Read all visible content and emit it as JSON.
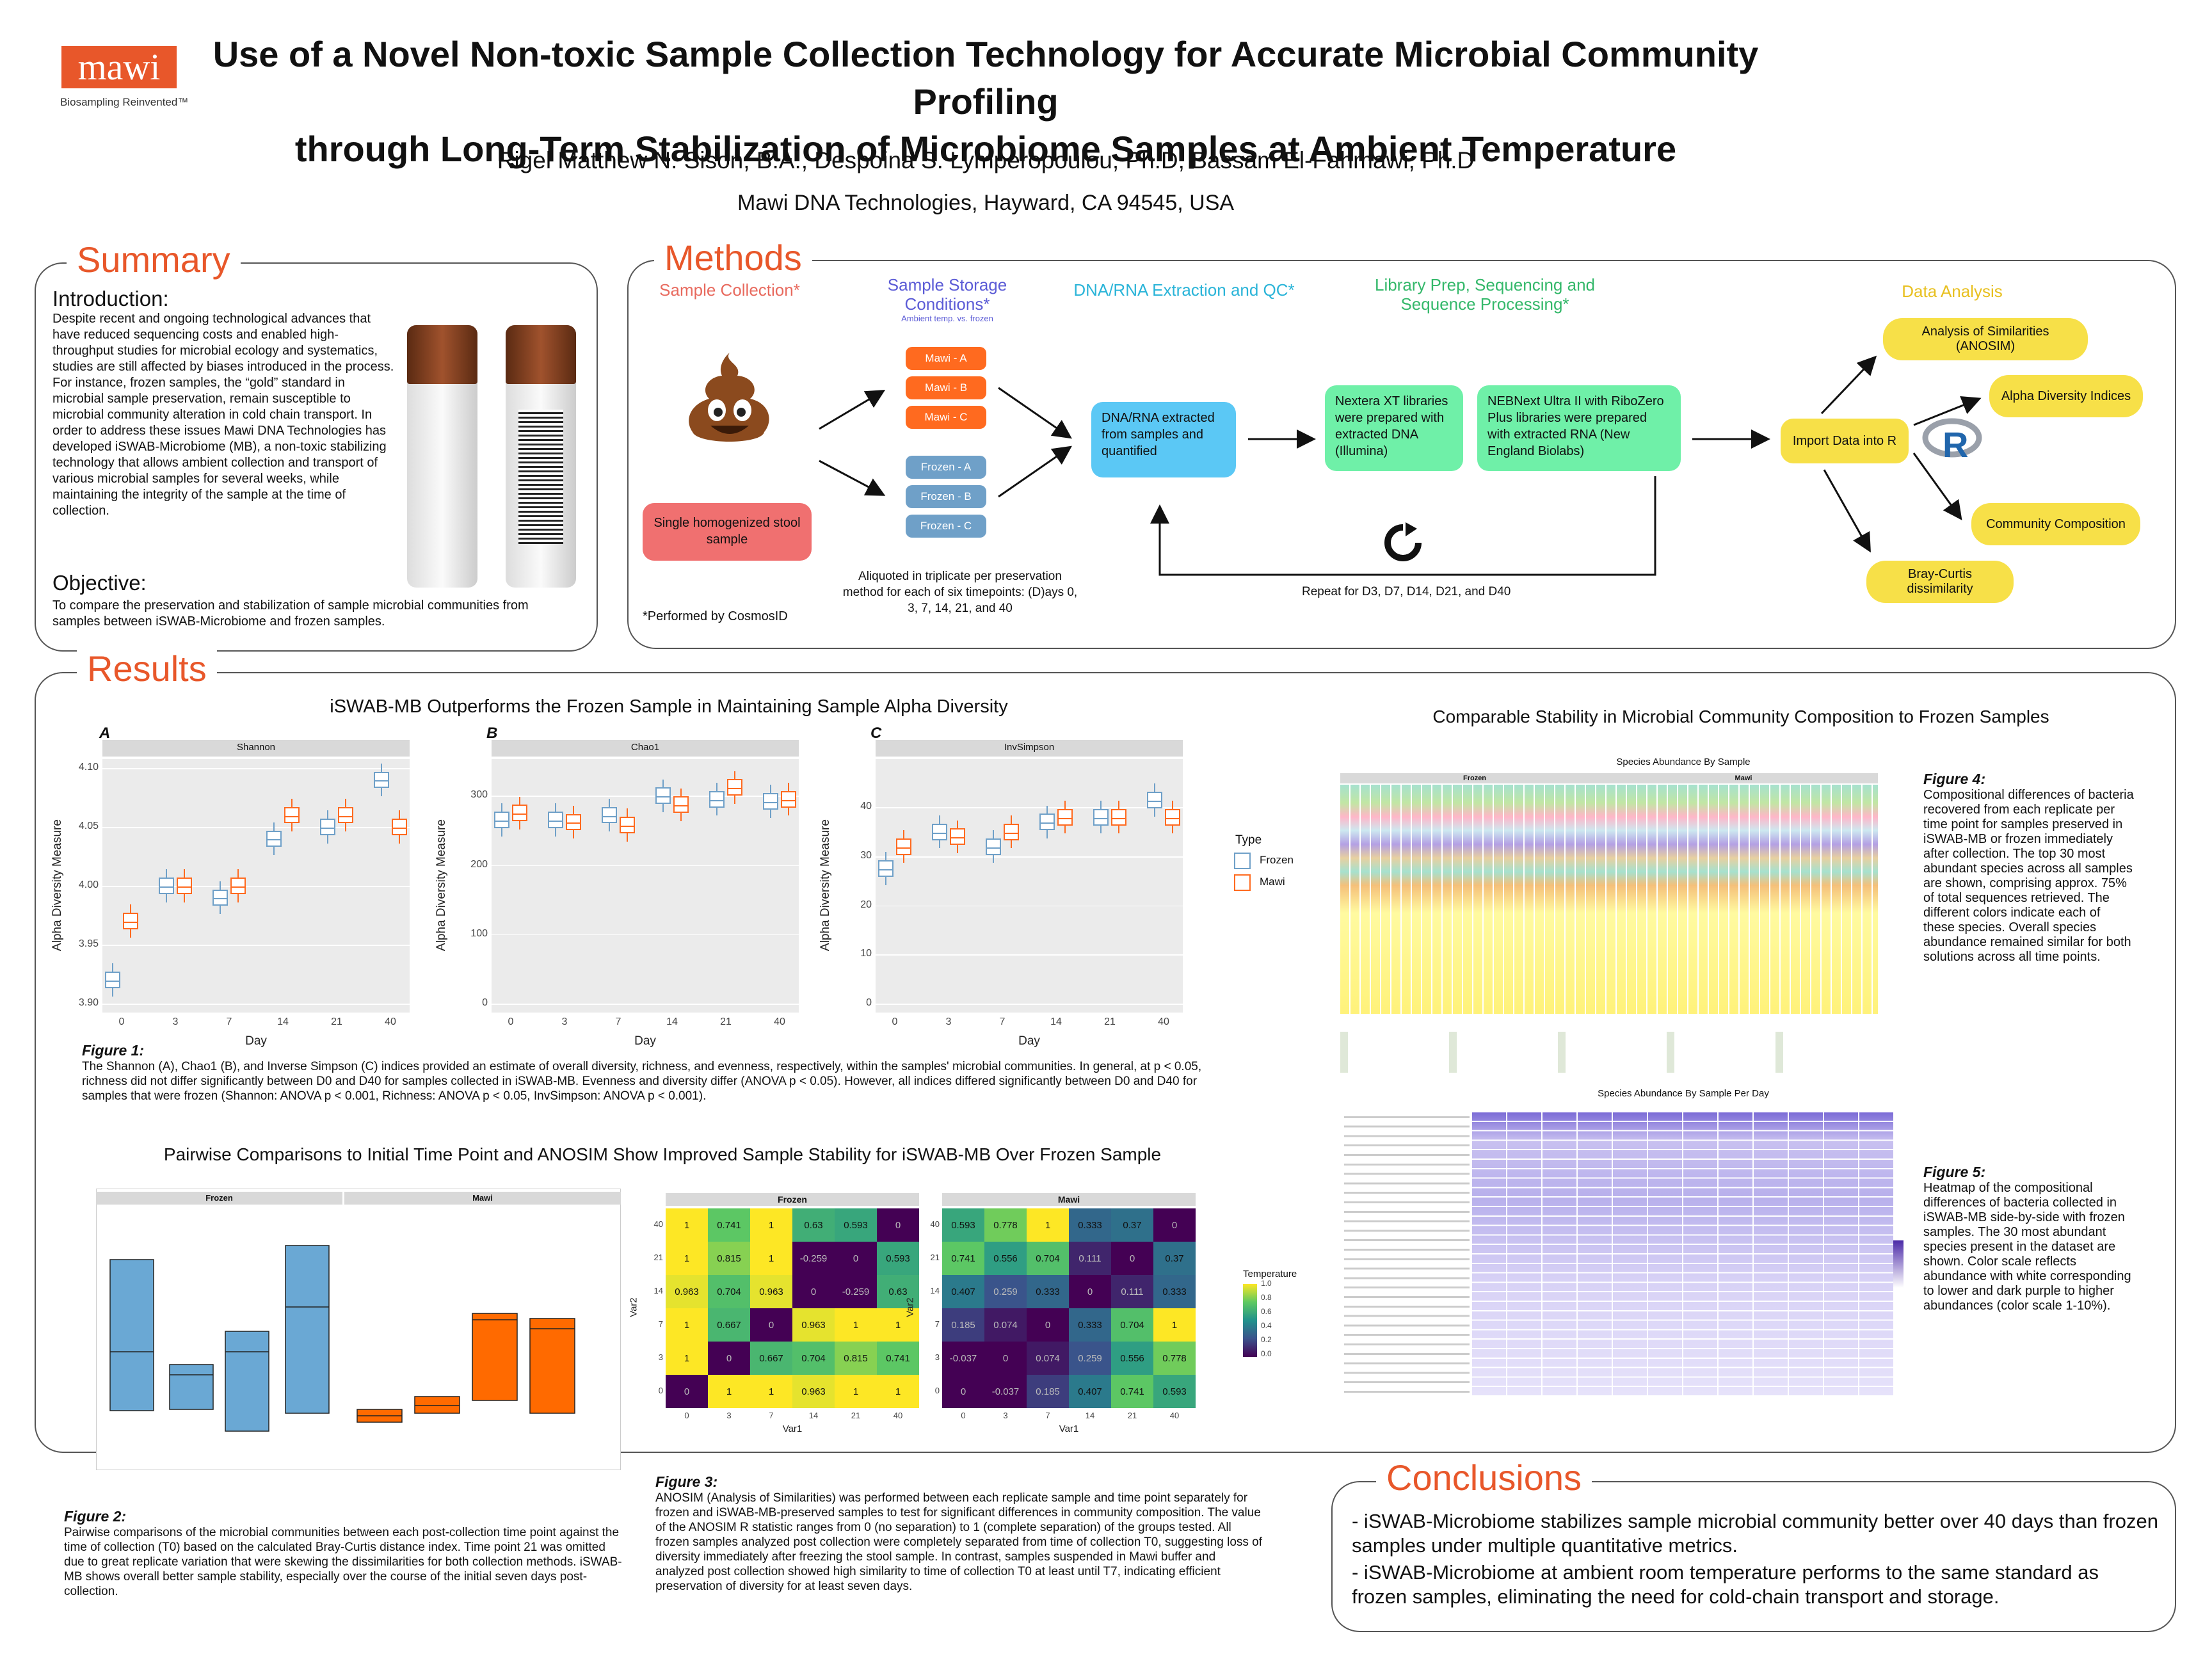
{
  "header": {
    "logo": "mawi",
    "tagline": "Biosampling Reinvented™",
    "title_line1": "Use of a Novel Non-toxic Sample Collection Technology for Accurate Microbial Community Profiling",
    "title_line2": "through Long-Term Stabilization of Microbiome Samples at Ambient Temperature",
    "authors": "Rigel Matthew N. Sison, B.A., Despoina S. Lymperopoulou, Ph.D,  Bassam El-Fahmawi, Ph.D",
    "affiliation": "Mawi DNA Technologies, Hayward, CA 94545, USA"
  },
  "summary": {
    "heading": "Summary",
    "intro_heading": "Introduction:",
    "intro_text": "Despite recent and ongoing technological advances that have reduced sequencing costs and enabled high-throughput studies for microbial ecology and systematics, studies are still affected by biases introduced in the process. For instance, frozen samples, the “gold” standard in microbial sample preservation, remain susceptible to microbial community alteration in cold chain transport. In order to address these issues Mawi DNA Technologies has developed iSWAB-Microbiome (MB), a non-toxic stabilizing technology that allows ambient collection and transport of various microbial samples for several weeks, while maintaining the integrity of the sample at the time of collection.",
    "objective_heading": "Objective:",
    "objective_text": "To compare the preservation and stabilization of sample microbial communities from samples between iSWAB-Microbiome and frozen samples."
  },
  "methods": {
    "heading": "Methods",
    "sample_collection": "Sample Collection*",
    "storage": "Sample Storage Conditions*",
    "storage_sub": "Ambient temp. vs. frozen",
    "extraction": "DNA/RNA Extraction and QC*",
    "library": "Library Prep, Sequencing and Sequence Processing*",
    "analysis": "Data Analysis",
    "stool": "Single homogenized stool sample",
    "mawi_boxes": [
      "Mawi - A",
      "Mawi - B",
      "Mawi - C"
    ],
    "frozen_boxes": [
      "Frozen - A",
      "Frozen - B",
      "Frozen - C"
    ],
    "aliquot_note": "Aliquoted in triplicate per preservation method for each of six timepoints: (D)ays 0, 3, 7, 14, 21, and 40",
    "cosmos": "*Performed by CosmosID",
    "dna_box": "DNA/RNA extracted from samples and quantified",
    "nextera": "Nextera XT libraries were prepared with extracted DNA (Illumina)",
    "nebnext": "NEBNext Ultra II with RiboZero Plus libraries were prepared with extracted RNA (New England Biolabs)",
    "repeat": "Repeat for D3, D7, D14, D21, and D40",
    "import": "Import Data into R",
    "anosim": "Analysis of Similarities (ANOSIM)",
    "alpha": "Alpha Diversity Indices",
    "community": "Community Composition",
    "bray": "Bray-Curtis dissimilarity",
    "r_logo": "R"
  },
  "results": {
    "heading": "Results",
    "alpha_title": "iSWAB-MB Outperforms the Frozen Sample in Maintaining Sample Alpha Diversity",
    "fig1_caption_label": "Figure 1:",
    "fig1_caption": "The Shannon (A), Chao1 (B), and Inverse Simpson (C) indices provided an estimate of overall diversity, richness, and evenness, respectively, within the samples' microbial communities. In general, at p < 0.05, richness did not differ significantly between D0 and D40 for samples collected in iSWAB-MB. Evenness and diversity differ (ANOVA p < 0.05). However, all indices differed significantly between D0 and D40 for samples that were frozen (Shannon: ANOVA p < 0.001, Richness: ANOVA p < 0.05, InvSimpson: ANOVA p < 0.001).",
    "pair_title": "Pairwise Comparisons to Initial Time Point and ANOSIM Show Improved Sample Stability for iSWAB-MB Over Frozen Sample",
    "fig2_label": "Figure 2:",
    "fig2_caption": "Pairwise comparisons of the microbial communities between each post-collection time point against the time of collection (T0) based on the calculated Bray-Curtis distance index. Time point 21 was omitted due to great replicate variation that were skewing the dissimilarities for both collection methods.  iSWAB-MB shows overall better sample stability, especially over the course of the initial seven days post-collection.",
    "fig3_label": "Figure 3:",
    "fig3_caption": "ANOSIM (Analysis of Similarities) was performed between each replicate sample and time point separately for frozen and iSWAB-MB-preserved samples to test for significant differences in community composition. The value of the ANOSIM R statistic ranges from 0 (no separation) to 1 (complete separation) of the groups tested. All frozen samples analyzed post collection were completely separated from time of collection T0, suggesting loss of diversity immediately after freezing the stool sample. In contrast, samples suspended in Mawi buffer and analyzed post collection showed high similarity to time of collection T0 at least until T7, indicating efficient preservation of diversity for at least seven days.",
    "comp_title": "Comparable Stability in Microbial Community Composition to Frozen Samples",
    "fig4_label": "Figure 4:",
    "fig4_caption": "Compositional differences of bacteria recovered from each replicate per time point for samples preserved in iSWAB-MB or frozen immediately after collection. The top 30 most abundant species across all samples are shown, comprising approx. 75% of total sequences retrieved. The different colors indicate each of these species. Overall species abundance remained similar for both solutions across all time points.",
    "fig5_label": "Figure 5:",
    "fig5_caption": "Heatmap of the compositional differences of bacteria collected in iSWAB-MB side-by-side with frozen samples. The 30 most abundant species present in the dataset are shown. Color scale reflects abundance with white corresponding to lower and dark purple to higher abundances (color scale 1-10%).",
    "species_title": "Species Abundance By Sample",
    "species_day_title": "Species Abundance By Sample Per Day"
  },
  "conclusions": {
    "heading": "Conclusions",
    "point1": "- iSWAB-Microbiome stabilizes sample microbial community better over 40 days than frozen samples under multiple quantitative metrics.",
    "point2": "- iSWAB-Microbiome at ambient room temperature performs to the same standard as frozen samples, eliminating the need for cold-chain transport and storage."
  },
  "chart_data": [
    {
      "type": "box",
      "panel": "A",
      "facet": "Shannon",
      "xlabel": "Day",
      "ylabel": "Alpha Diversity Measure",
      "categories": [
        "0",
        "3",
        "7",
        "14",
        "21",
        "40"
      ],
      "ylim": [
        3.9,
        4.1
      ],
      "yticks": [
        "3.90",
        "3.95",
        "4.00",
        "4.05",
        "4.10"
      ],
      "legend_title": "Type",
      "series": [
        {
          "name": "Frozen",
          "median": [
            3.92,
            4.0,
            3.99,
            4.04,
            4.05,
            4.09
          ]
        },
        {
          "name": "Mawi",
          "median": [
            3.97,
            4.0,
            4.0,
            4.06,
            4.06,
            4.05
          ]
        }
      ]
    },
    {
      "type": "box",
      "panel": "B",
      "facet": "Chao1",
      "xlabel": "Day",
      "categories": [
        "0",
        "3",
        "7",
        "14",
        "21",
        "40"
      ],
      "ylim": [
        0,
        340
      ],
      "yticks": [
        "0",
        "100",
        "200",
        "300"
      ],
      "series": [
        {
          "name": "Frozen",
          "median": [
            265,
            265,
            272,
            300,
            295,
            292
          ]
        },
        {
          "name": "Mawi",
          "median": [
            275,
            262,
            258,
            287,
            312,
            295
          ]
        }
      ]
    },
    {
      "type": "box",
      "panel": "C",
      "facet": "InvSimpson",
      "xlabel": "Day",
      "categories": [
        "0",
        "3",
        "7",
        "14",
        "21",
        "40"
      ],
      "ylim": [
        0,
        48
      ],
      "yticks": [
        "0",
        "10",
        "20",
        "30",
        "40"
      ],
      "series": [
        {
          "name": "Frozen",
          "median": [
            27.5,
            35,
            32,
            37,
            38,
            41.5
          ]
        },
        {
          "name": "Mawi",
          "median": [
            32,
            34,
            35,
            38,
            38,
            38
          ]
        }
      ]
    },
    {
      "type": "heatmap",
      "facet": "Frozen",
      "xlabel": "Var1",
      "ylabel": "Var2",
      "x": [
        "0",
        "3",
        "7",
        "14",
        "21",
        "40"
      ],
      "y": [
        "40",
        "21",
        "14",
        "7",
        "3",
        "0"
      ],
      "values": [
        [
          "1",
          "0.741",
          "1",
          "0.63",
          "0.593",
          "0"
        ],
        [
          "1",
          "0.815",
          "1",
          "-0.259",
          "0",
          "0.593"
        ],
        [
          "0.963",
          "0.704",
          "0.963",
          "0",
          "-0.259",
          "0.63"
        ],
        [
          "1",
          "0.667",
          "0",
          "0.963",
          "1",
          "1"
        ],
        [
          "1",
          "0",
          "0.667",
          "0.704",
          "0.815",
          "0.741"
        ],
        [
          "0",
          "1",
          "1",
          "0.963",
          "1",
          "1"
        ]
      ]
    },
    {
      "type": "heatmap",
      "facet": "Mawi",
      "x": [
        "0",
        "3",
        "7",
        "14",
        "21",
        "40"
      ],
      "y": [
        "40",
        "21",
        "14",
        "7",
        "3",
        "0"
      ],
      "legend_title": "Temperature",
      "legend_ticks": [
        "1.0",
        "0.8",
        "0.6",
        "0.4",
        "0.2",
        "0.0"
      ],
      "values": [
        [
          "0.593",
          "0.778",
          "1",
          "0.333",
          "0.37",
          "0"
        ],
        [
          "0.741",
          "0.556",
          "0.704",
          "0.111",
          "0",
          "0.37"
        ],
        [
          "0.407",
          "0.259",
          "0.333",
          "0",
          "0.111",
          "0.333"
        ],
        [
          "0.185",
          "0.074",
          "0",
          "0.333",
          "0.704",
          "1"
        ],
        [
          "-0.037",
          "0",
          "0.074",
          "0.259",
          "0.556",
          "0.778"
        ],
        [
          "0",
          "-0.037",
          "0.185",
          "0.407",
          "0.741",
          "0.593"
        ]
      ]
    }
  ],
  "colors": {
    "accent": "#e8572a",
    "frozen": "#6fa0c8",
    "mawi": "#ff6a1f",
    "dna_box": "#5bc8f5",
    "lib_box": "#6ff0a8",
    "analysis": "#f7e048",
    "stool": "#f07070"
  }
}
